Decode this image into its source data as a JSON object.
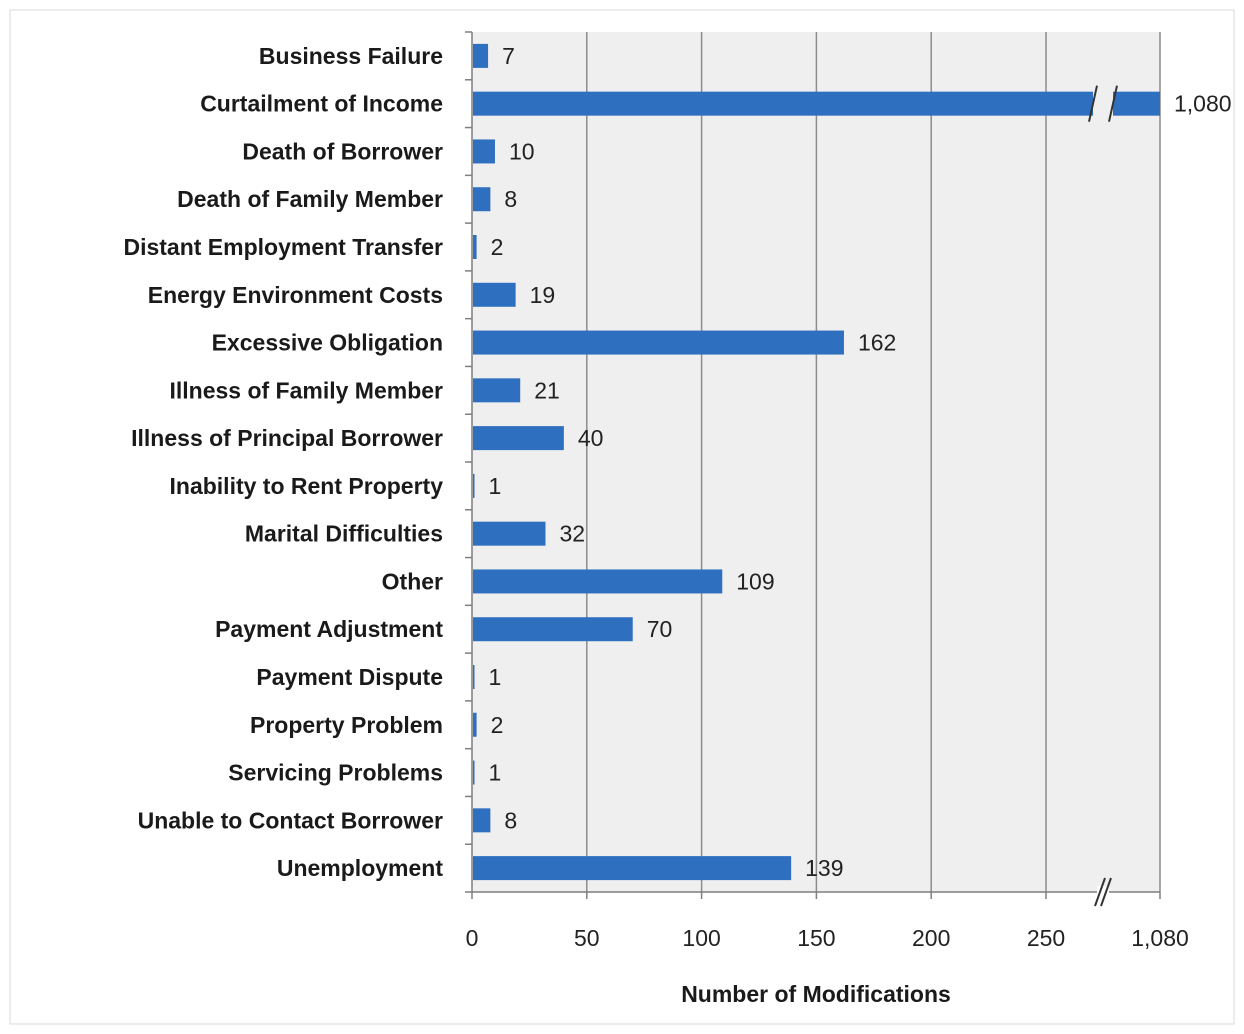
{
  "chart_data": {
    "type": "bar",
    "orientation": "horizontal",
    "categories": [
      "Business Failure",
      "Curtailment of Income",
      "Death of Borrower",
      "Death of Family Member",
      "Distant Employment Transfer",
      "Energy Environment Costs",
      "Excessive Obligation",
      "Illness of Family Member",
      "Illness of Principal Borrower",
      "Inability to Rent Property",
      "Marital Difficulties",
      "Other",
      "Payment Adjustment",
      "Payment Dispute",
      "Property Problem",
      "Servicing Problems",
      "Unable to Contact Borrower",
      "Unemployment"
    ],
    "values": [
      7,
      1080,
      10,
      8,
      2,
      19,
      162,
      21,
      40,
      1,
      32,
      109,
      70,
      1,
      2,
      1,
      8,
      139
    ],
    "value_labels": [
      "7",
      "1,080",
      "10",
      "8",
      "2",
      "19",
      "162",
      "21",
      "40",
      "1",
      "32",
      "109",
      "70",
      "1",
      "2",
      "1",
      "8",
      "139"
    ],
    "title": "",
    "xlabel": "Number of Modifications",
    "ylabel": "",
    "x_ticks": [
      0,
      50,
      100,
      150,
      200,
      250,
      1080
    ],
    "x_tick_labels": [
      "0",
      "50",
      "100",
      "150",
      "200",
      "250",
      "1,080"
    ],
    "axis_break": {
      "from": 250,
      "to": 1080
    },
    "xlim": [
      0,
      1080
    ],
    "grid": true,
    "legend": "none",
    "colors": {
      "bar": "#2e6fc0",
      "plot_background": "#efefef",
      "grid": "#8c8c8c",
      "axis": "#7f7f7f"
    }
  }
}
